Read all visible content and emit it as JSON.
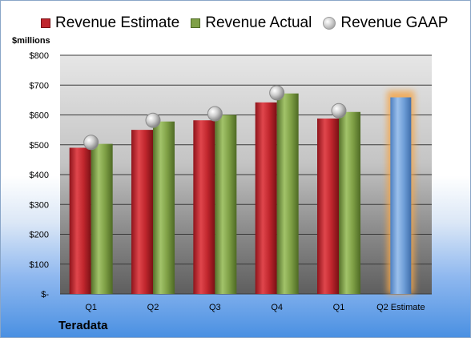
{
  "legend": {
    "estimate": "Revenue Estimate",
    "actual": "Revenue Actual",
    "gaap": "Revenue GAAP"
  },
  "unit_label": "$millions",
  "company": "Teradata",
  "colors": {
    "estimate": "#c0262d",
    "actual": "#7fa046",
    "projection": "#6f9fd8",
    "projection_glow": "#f3a64b",
    "gaap_marker": "#b5b5b5"
  },
  "chart_data": {
    "type": "bar",
    "ylabel": "$millions",
    "ylim": [
      0,
      800
    ],
    "yticks": [
      0,
      100,
      200,
      300,
      400,
      500,
      600,
      700,
      800
    ],
    "ytick_labels": [
      "$-",
      "$100",
      "$200",
      "$300",
      "$400",
      "$500",
      "$600",
      "$700",
      "$800"
    ],
    "categories": [
      "Q1",
      "Q2",
      "Q3",
      "Q4",
      "Q1",
      "Q2 Estimate"
    ],
    "grid": true,
    "legend_position": "top",
    "series": [
      {
        "name": "Revenue Estimate",
        "values": [
          490,
          550,
          582,
          642,
          588,
          null
        ]
      },
      {
        "name": "Revenue Actual",
        "values": [
          503,
          578,
          600,
          672,
          610,
          null
        ]
      },
      {
        "name": "Revenue GAAP",
        "values": [
          508,
          582,
          604,
          674,
          614,
          null
        ]
      },
      {
        "name": "Q2 Estimate",
        "values": [
          null,
          null,
          null,
          null,
          null,
          659
        ]
      }
    ]
  }
}
